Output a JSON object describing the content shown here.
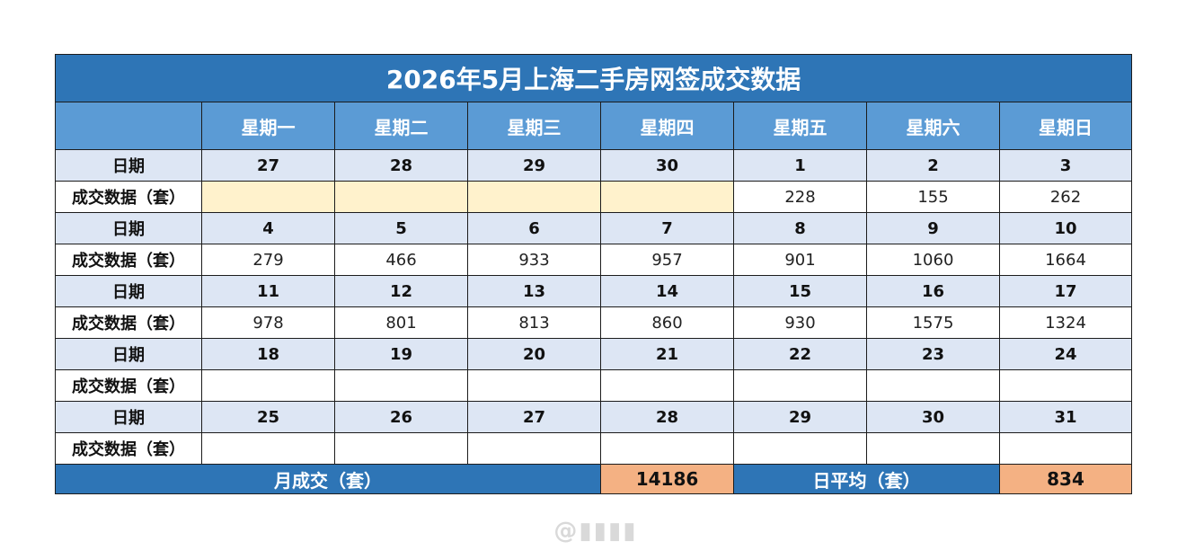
{
  "title": "2026年5月上海二手房网签成交数据",
  "weekdays": [
    "星期一",
    "星期二",
    "星期三",
    "星期四",
    "星期五",
    "星期六",
    "星期日"
  ],
  "row_labels": {
    "date": "日期",
    "deals": "成交数据（套）"
  },
  "weeks": [
    {
      "dates": [
        "27",
        "28",
        "29",
        "30",
        "1",
        "2",
        "3"
      ],
      "deals": [
        "",
        "",
        "",
        "",
        "228",
        "155",
        "262"
      ],
      "pending": [
        true,
        true,
        true,
        true,
        false,
        false,
        false
      ]
    },
    {
      "dates": [
        "4",
        "5",
        "6",
        "7",
        "8",
        "9",
        "10"
      ],
      "deals": [
        "279",
        "466",
        "933",
        "957",
        "901",
        "1060",
        "1664"
      ],
      "pending": [
        false,
        false,
        false,
        false,
        false,
        false,
        false
      ]
    },
    {
      "dates": [
        "11",
        "12",
        "13",
        "14",
        "15",
        "16",
        "17"
      ],
      "deals": [
        "978",
        "801",
        "813",
        "860",
        "930",
        "1575",
        "1324"
      ],
      "pending": [
        false,
        false,
        false,
        false,
        false,
        false,
        false
      ]
    },
    {
      "dates": [
        "18",
        "19",
        "20",
        "21",
        "22",
        "23",
        "24"
      ],
      "deals": [
        "",
        "",
        "",
        "",
        "",
        "",
        ""
      ],
      "pending": [
        false,
        false,
        false,
        false,
        false,
        false,
        false
      ]
    },
    {
      "dates": [
        "25",
        "26",
        "27",
        "28",
        "29",
        "30",
        "31"
      ],
      "deals": [
        "",
        "",
        "",
        "",
        "",
        "",
        ""
      ],
      "pending": [
        false,
        false,
        false,
        false,
        false,
        false,
        false
      ]
    }
  ],
  "summary": {
    "month_label": "月成交（套）",
    "month_value": "14186",
    "avg_label": "日平均（套）",
    "avg_value": "834"
  },
  "colors": {
    "title_bg": "#2e75b6",
    "header_bg": "#5b9bd5",
    "date_row_bg": "#dde6f4",
    "pending_bg": "#fff2cc",
    "summary_value_bg": "#f4b183"
  }
}
